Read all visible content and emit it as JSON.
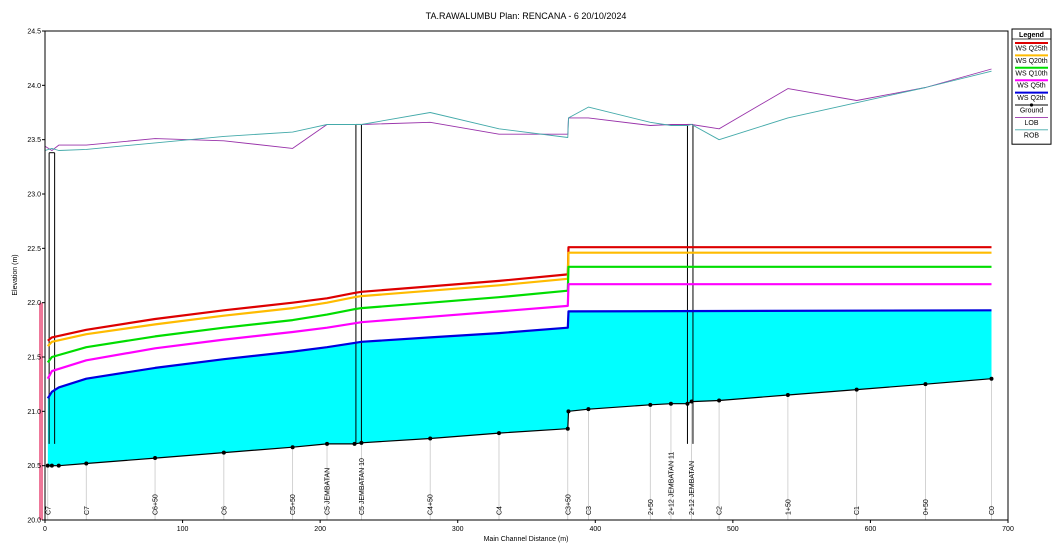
{
  "chart_data": {
    "type": "line",
    "title": "TA.RAWALUMBU     Plan: RENCANA - 6    20/10/2024",
    "xlabel": "Main Channel Distance (m)",
    "ylabel": "Elevation (m)",
    "xlim": [
      0,
      700
    ],
    "ylim": [
      20.0,
      24.5
    ],
    "xticks": [
      0,
      100,
      200,
      300,
      400,
      500,
      600,
      700
    ],
    "yticks": [
      "20.0",
      "20.5",
      "21.0",
      "21.5",
      "22.0",
      "22.5",
      "23.0",
      "23.5",
      "24.0",
      "24.5"
    ],
    "legend_title": "Legend",
    "legend_position": "top-right",
    "series": [
      {
        "name": "WS  Q25th",
        "color": "#dd0000",
        "x": [
          2,
          5,
          30,
          80,
          130,
          180,
          205,
          225,
          230,
          280,
          330,
          380,
          380.5,
          688
        ],
        "y": [
          21.65,
          21.68,
          21.75,
          21.85,
          21.93,
          22.0,
          22.04,
          22.09,
          22.1,
          22.15,
          22.2,
          22.26,
          22.51,
          22.51
        ]
      },
      {
        "name": "WS  Q20th",
        "color": "#ffbb00",
        "x": [
          2,
          5,
          30,
          80,
          130,
          180,
          205,
          225,
          230,
          280,
          330,
          380,
          380.5,
          688
        ],
        "y": [
          21.6,
          21.64,
          21.71,
          21.8,
          21.88,
          21.95,
          22.0,
          22.05,
          22.06,
          22.11,
          22.16,
          22.22,
          22.46,
          22.46
        ]
      },
      {
        "name": "WS  Q10th",
        "color": "#00dd00",
        "x": [
          2,
          5,
          30,
          80,
          130,
          180,
          205,
          225,
          230,
          280,
          330,
          380,
          380.5,
          688
        ],
        "y": [
          21.45,
          21.5,
          21.59,
          21.69,
          21.77,
          21.84,
          21.89,
          21.94,
          21.95,
          22.0,
          22.05,
          22.11,
          22.33,
          22.33
        ]
      },
      {
        "name": "WS  Q5th",
        "color": "#ff00ff",
        "x": [
          2,
          5,
          30,
          80,
          130,
          180,
          205,
          225,
          230,
          280,
          330,
          380,
          380.5,
          688
        ],
        "y": [
          21.3,
          21.37,
          21.47,
          21.58,
          21.66,
          21.73,
          21.77,
          21.81,
          21.82,
          21.87,
          21.92,
          21.97,
          22.17,
          22.17
        ]
      },
      {
        "name": "WS  Q2th",
        "color": "#0000dd",
        "x": [
          2,
          5,
          10,
          30,
          80,
          130,
          180,
          205,
          225,
          230,
          280,
          330,
          380,
          380.5,
          688
        ],
        "y": [
          21.12,
          21.18,
          21.22,
          21.3,
          21.4,
          21.48,
          21.55,
          21.59,
          21.63,
          21.64,
          21.68,
          21.72,
          21.77,
          21.92,
          21.93
        ]
      },
      {
        "name": "Ground",
        "color": "#000000",
        "x": [
          2,
          5,
          10,
          30,
          80,
          130,
          180,
          205,
          225,
          230,
          280,
          330,
          380,
          380.5,
          395,
          440,
          455,
          467,
          470,
          490,
          540,
          590,
          640,
          688
        ],
        "y": [
          20.5,
          20.5,
          20.5,
          20.52,
          20.57,
          20.62,
          20.67,
          20.7,
          20.7,
          20.71,
          20.75,
          20.8,
          20.84,
          21.0,
          21.02,
          21.06,
          21.07,
          21.07,
          21.09,
          21.1,
          21.15,
          21.2,
          21.25,
          21.3
        ]
      },
      {
        "name": "LOB",
        "color": "#9933aa",
        "x": [
          0,
          5,
          10,
          30,
          80,
          130,
          180,
          205,
          225,
          230,
          280,
          330,
          380,
          380.5,
          395,
          440,
          455,
          467,
          470,
          490,
          540,
          590,
          640,
          688
        ],
        "y": [
          23.44,
          23.4,
          23.45,
          23.45,
          23.51,
          23.49,
          23.42,
          23.64,
          23.64,
          23.64,
          23.66,
          23.55,
          23.55,
          23.7,
          23.7,
          23.63,
          23.64,
          23.64,
          23.64,
          23.6,
          23.97,
          23.86,
          23.98,
          24.15
        ]
      },
      {
        "name": "ROB",
        "color": "#44aaaa",
        "x": [
          0,
          5,
          10,
          30,
          80,
          130,
          180,
          205,
          225,
          230,
          280,
          330,
          380,
          380.5,
          395,
          440,
          455,
          467,
          470,
          490,
          540,
          590,
          640,
          688
        ],
        "y": [
          23.4,
          23.42,
          23.4,
          23.41,
          23.47,
          23.53,
          23.57,
          23.64,
          23.64,
          23.64,
          23.75,
          23.6,
          23.52,
          23.7,
          23.8,
          23.66,
          23.63,
          23.63,
          23.64,
          23.5,
          23.7,
          23.84,
          23.98,
          24.13
        ]
      }
    ],
    "river_stations": [
      {
        "x": 2,
        "label": "C7"
      },
      {
        "x": 30,
        "label": "C7"
      },
      {
        "x": 80,
        "label": "C6+50"
      },
      {
        "x": 130,
        "label": "C6"
      },
      {
        "x": 180,
        "label": "C5+50"
      },
      {
        "x": 205,
        "label": "C5 JEMBATAN"
      },
      {
        "x": 230,
        "label": "C5 JEMBATAN 10"
      },
      {
        "x": 280,
        "label": "C4+50"
      },
      {
        "x": 330,
        "label": "C4"
      },
      {
        "x": 380,
        "label": "C3+50"
      },
      {
        "x": 395,
        "label": "C3"
      },
      {
        "x": 440,
        "label": "2+50"
      },
      {
        "x": 455,
        "label": "2+12 JEMBATAN 11"
      },
      {
        "x": 470,
        "label": "2+12 JEMBATAN"
      },
      {
        "x": 490,
        "label": "C2"
      },
      {
        "x": 540,
        "label": "1+50"
      },
      {
        "x": 590,
        "label": "C1"
      },
      {
        "x": 640,
        "label": "0+50"
      },
      {
        "x": 688,
        "label": "C0"
      }
    ],
    "bridges": [
      {
        "x": 3,
        "top": 23.38
      },
      {
        "x": 226,
        "top": 23.64
      },
      {
        "x": 467,
        "top": 23.64
      }
    ],
    "fill_color": "#00ffff",
    "pink_bar_top": 22.0
  }
}
